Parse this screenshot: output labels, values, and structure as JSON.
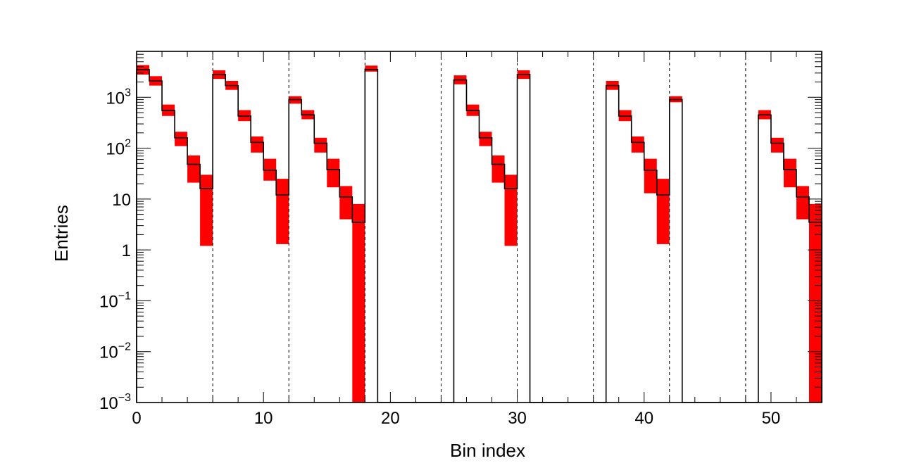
{
  "chart_data": {
    "type": "bar",
    "xlabel": "Bin index",
    "ylabel": "Entries",
    "xlim": [
      0,
      54
    ],
    "ylim": [
      0.001,
      8000
    ],
    "yscale": "log",
    "grid": false,
    "x_ticks": [
      {
        "value": 0,
        "label": "0"
      },
      {
        "value": 10,
        "label": "10"
      },
      {
        "value": 20,
        "label": "20"
      },
      {
        "value": 30,
        "label": "30"
      },
      {
        "value": 40,
        "label": "40"
      },
      {
        "value": 50,
        "label": "50"
      }
    ],
    "y_ticks": [
      {
        "value": 0.001,
        "base": "10",
        "exp": "−3"
      },
      {
        "value": 0.01,
        "base": "10",
        "exp": "−2"
      },
      {
        "value": 0.1,
        "base": "10",
        "exp": "−1"
      },
      {
        "value": 1,
        "base": "1",
        "exp": ""
      },
      {
        "value": 10,
        "base": "10",
        "exp": ""
      },
      {
        "value": 100,
        "base": "10",
        "exp": "2"
      },
      {
        "value": 1000,
        "base": "10",
        "exp": "3"
      }
    ],
    "separators": [
      6,
      12,
      18,
      24,
      30,
      36,
      42,
      48
    ],
    "bin_edges_start": 0,
    "bin_width": 1,
    "values": [
      3500,
      2100,
      550,
      160,
      48,
      16,
      2800,
      1700,
      430,
      130,
      37,
      12,
      900,
      450,
      125,
      38,
      11,
      3.5,
      3500,
      0,
      0,
      0,
      0,
      0,
      0,
      2200,
      550,
      160,
      48,
      16,
      2800,
      0,
      0,
      0,
      0,
      0,
      0,
      1700,
      430,
      130,
      37,
      12,
      900,
      0,
      0,
      0,
      0,
      0,
      0,
      450,
      125,
      38,
      11,
      3.5
    ],
    "band_low": [
      2800,
      1700,
      430,
      110,
      21,
      1.2,
      2300,
      1400,
      340,
      82,
      23,
      1.3,
      750,
      370,
      82,
      17,
      4,
      0.0001,
      3200,
      0,
      0,
      0,
      0,
      0,
      0,
      1800,
      430,
      110,
      21,
      1.2,
      2300,
      0,
      0,
      0,
      0,
      0,
      0,
      1400,
      340,
      82,
      13,
      1.3,
      800,
      0,
      0,
      0,
      0,
      0,
      0,
      370,
      82,
      17,
      4,
      0.0001
    ],
    "band_high": [
      4300,
      2600,
      720,
      210,
      72,
      30,
      3400,
      2100,
      560,
      170,
      62,
      25,
      1050,
      560,
      160,
      62,
      18,
      8,
      4200,
      0,
      0,
      0,
      0,
      0,
      0,
      2700,
      720,
      210,
      72,
      30,
      3400,
      0,
      0,
      0,
      0,
      0,
      0,
      2100,
      560,
      170,
      62,
      25,
      1050,
      0,
      0,
      0,
      0,
      0,
      0,
      560,
      160,
      62,
      18,
      8
    ],
    "colors": {
      "band": "#ff0000",
      "line": "#000000",
      "frame": "#000000"
    }
  }
}
